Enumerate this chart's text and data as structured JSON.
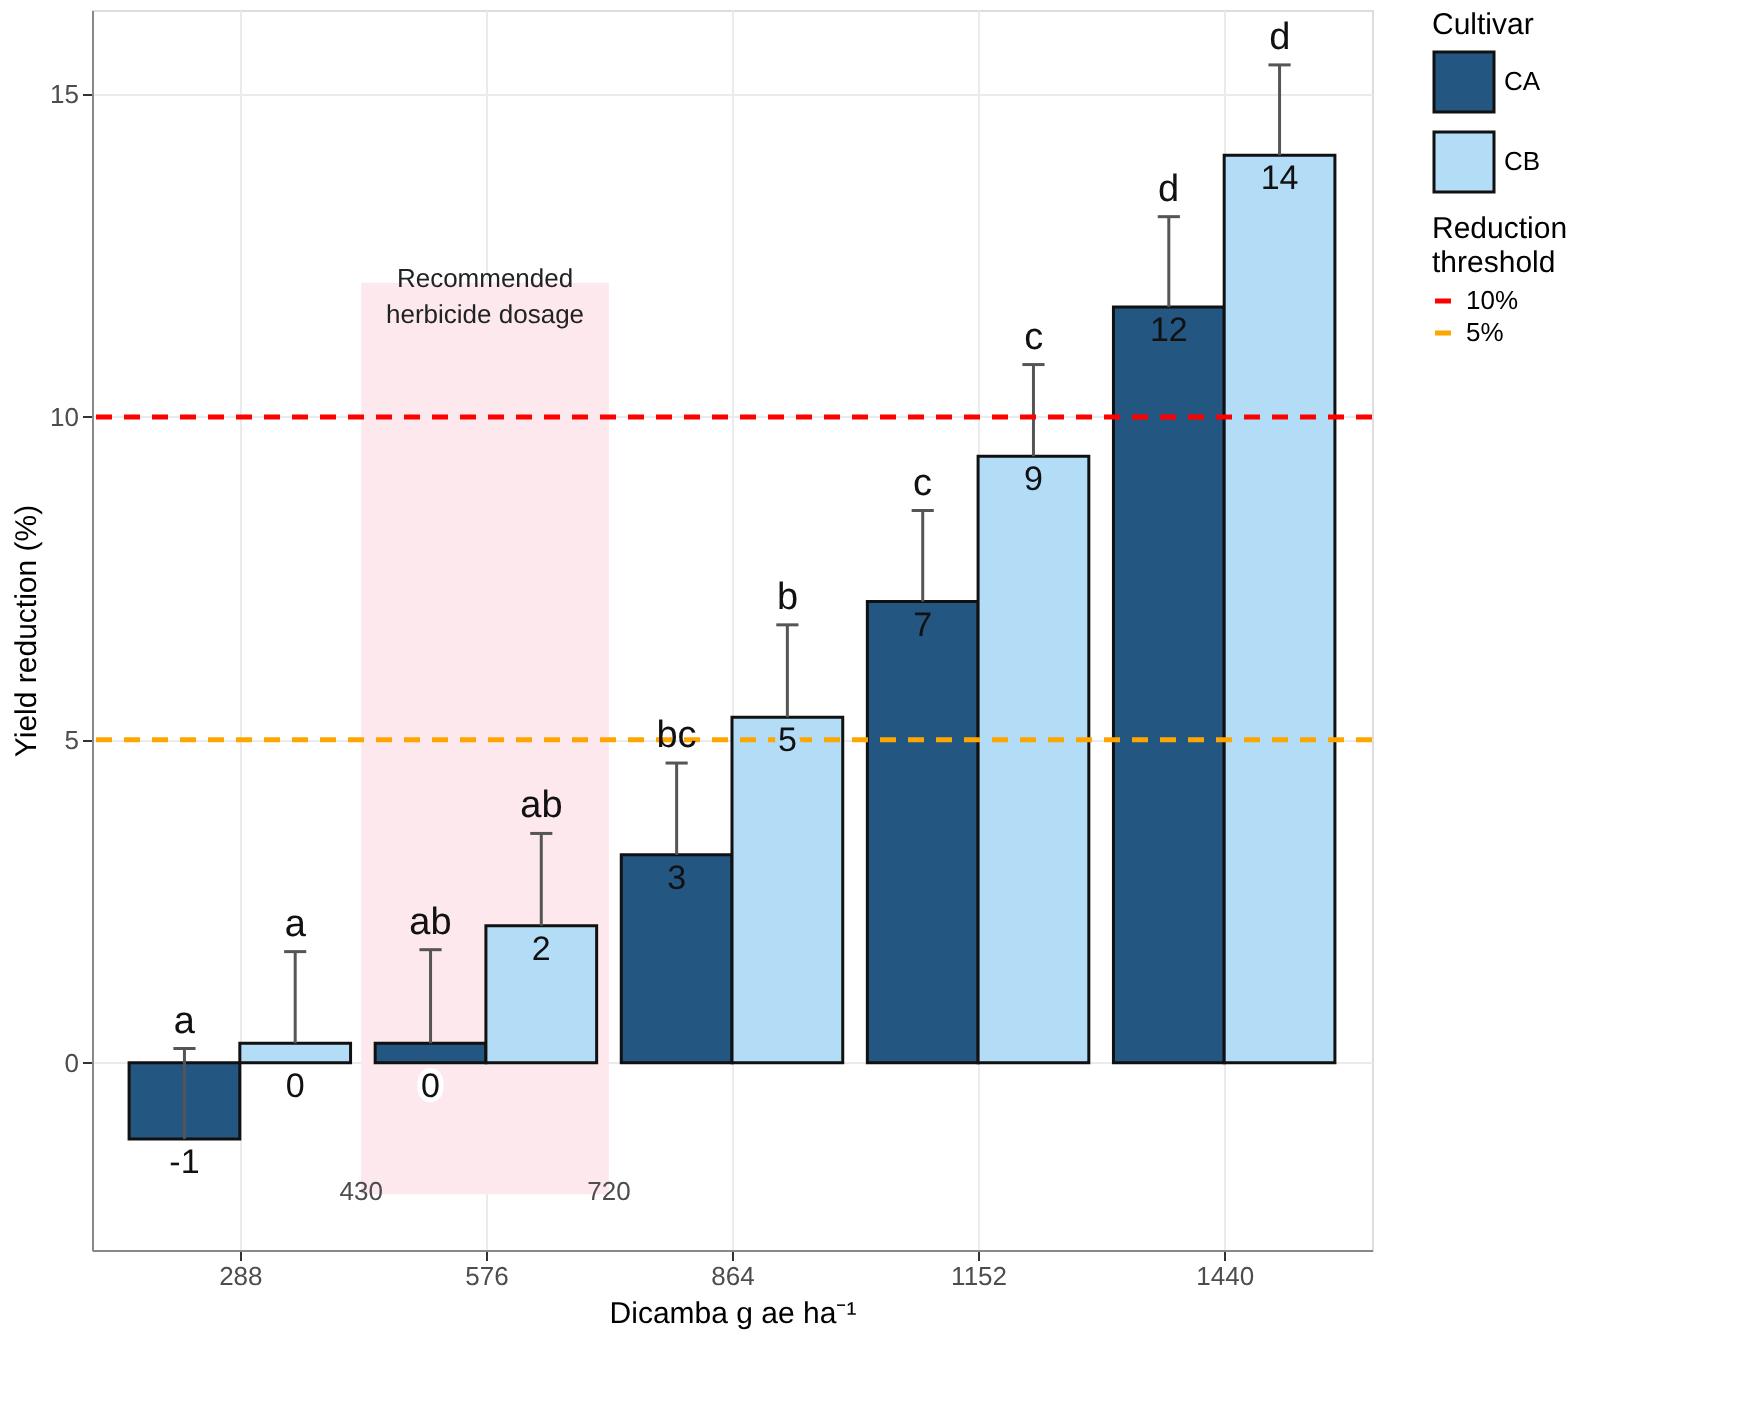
{
  "chart_data": {
    "type": "bar",
    "xlabel": "Dicamba g ae ha⁻¹",
    "ylabel": "Yield reduction (%)",
    "legend_title": [
      "Cultivar",
      "Reduction threshold"
    ],
    "x": [
      288,
      576,
      864,
      1152,
      1440
    ],
    "series": [
      {
        "name": "CA",
        "color": "#245682",
        "values": [
          -1.18,
          0.3,
          3.22,
          7.14,
          11.7
        ],
        "value_labels": [
          "-1",
          "0",
          "3",
          "7",
          "12"
        ],
        "errors": [
          [
            -1.18,
            0.22
          ],
          [
            0.3,
            1.75
          ],
          [
            3.22,
            4.64
          ],
          [
            7.14,
            8.55
          ],
          [
            11.7,
            13.1
          ]
        ]
      },
      {
        "name": "CB",
        "color": "#b3dcf7",
        "values": [
          0.3,
          2.12,
          5.35,
          9.39,
          14.05
        ],
        "value_labels": [
          "0",
          "2",
          "5",
          "9",
          "14"
        ],
        "errors": [
          [
            0.3,
            1.72
          ],
          [
            2.12,
            3.55
          ],
          [
            5.35,
            6.78
          ],
          [
            9.39,
            10.81
          ],
          [
            14.05,
            15.45
          ]
        ]
      }
    ],
    "xlim": [
      115,
      1613
    ],
    "xticks": [
      288,
      576,
      864,
      1152,
      1440
    ],
    "ylim": [
      -2.9,
      16.3
    ],
    "yticks": [
      0,
      5,
      10,
      15
    ],
    "grid": true,
    "legend": "right",
    "ref_lines": [
      {
        "axis": "y",
        "value": 10,
        "label": "10%",
        "color": "#ff0000",
        "line_style": "dashed"
      },
      {
        "axis": "y",
        "value": 5,
        "label": "5%",
        "color": "#ffa500",
        "line_style": "dashed"
      }
    ],
    "bands": [
      {
        "axis": "x",
        "from": 430,
        "to": 720,
        "label": "Recommended\nherbicide dosage",
        "color": "#fde8ee"
      }
    ],
    "annotations": [
      {
        "text": "a",
        "x": 223,
        "y": 0.22
      },
      {
        "text": "a",
        "x": 353,
        "y": 1.72
      },
      {
        "text": "ab",
        "x": 511,
        "y": 1.75
      },
      {
        "text": "ab",
        "x": 641,
        "y": 3.55
      },
      {
        "text": "bc",
        "x": 799,
        "y": 4.64
      },
      {
        "text": "b",
        "x": 929,
        "y": 6.78
      },
      {
        "text": "c",
        "x": 1087,
        "y": 8.55
      },
      {
        "text": "c",
        "x": 1217,
        "y": 10.81
      },
      {
        "text": "d",
        "x": 1375,
        "y": 13.1
      },
      {
        "text": "d",
        "x": 1505,
        "y": 15.45
      },
      {
        "text": "430",
        "x": 430,
        "y": -2.0
      },
      {
        "text": "720",
        "x": 720,
        "y": -2.0
      }
    ]
  }
}
